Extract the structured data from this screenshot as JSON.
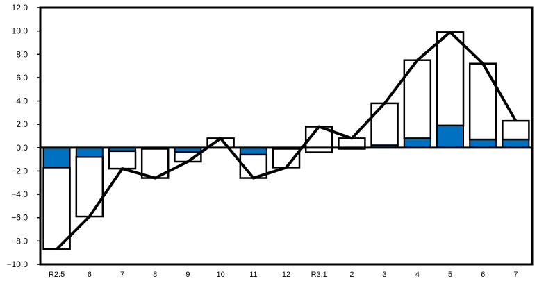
{
  "chart_data": {
    "type": "bar",
    "title": "",
    "xlabel": "",
    "ylabel": "",
    "ylim": [
      -10,
      12
    ],
    "yticks": [
      12,
      10,
      8,
      6,
      4,
      2,
      0,
      -2,
      -4,
      -6,
      -8,
      -10
    ],
    "ytick_labels": [
      "12.0",
      "10.0",
      "8.0",
      "6.0",
      "4.0",
      "2.0",
      "0.0",
      "−2.0",
      "−4.0",
      "−6.0",
      "−8.0",
      "−10.0"
    ],
    "categories": [
      "R2.5",
      "6",
      "7",
      "8",
      "9",
      "10",
      "11",
      "12",
      "R3.1",
      "2",
      "3",
      "4",
      "5",
      "6",
      "7"
    ],
    "grid": false,
    "legend": false,
    "series": [
      {
        "kind": "stacked-bar-segment",
        "color": "#0070C0",
        "values": [
          -1.7,
          -0.8,
          -0.3,
          -0.1,
          -0.4,
          0.0,
          -0.6,
          -0.1,
          -0.4,
          -0.1,
          0.2,
          0.8,
          1.9,
          0.7,
          0.7
        ]
      },
      {
        "kind": "stacked-bar-segment",
        "color": "#FFFFFF",
        "values": [
          -7.0,
          -5.1,
          -1.5,
          -2.5,
          -0.8,
          0.8,
          -2.0,
          -1.6,
          2.2,
          0.9,
          3.6,
          6.7,
          8.0,
          6.5,
          1.6
        ]
      },
      {
        "kind": "line",
        "color": "#000000",
        "values": [
          -8.7,
          -5.9,
          -1.8,
          -2.6,
          -1.2,
          0.8,
          -2.6,
          -1.7,
          1.8,
          0.8,
          3.8,
          7.5,
          9.9,
          7.2,
          2.3
        ]
      }
    ]
  }
}
